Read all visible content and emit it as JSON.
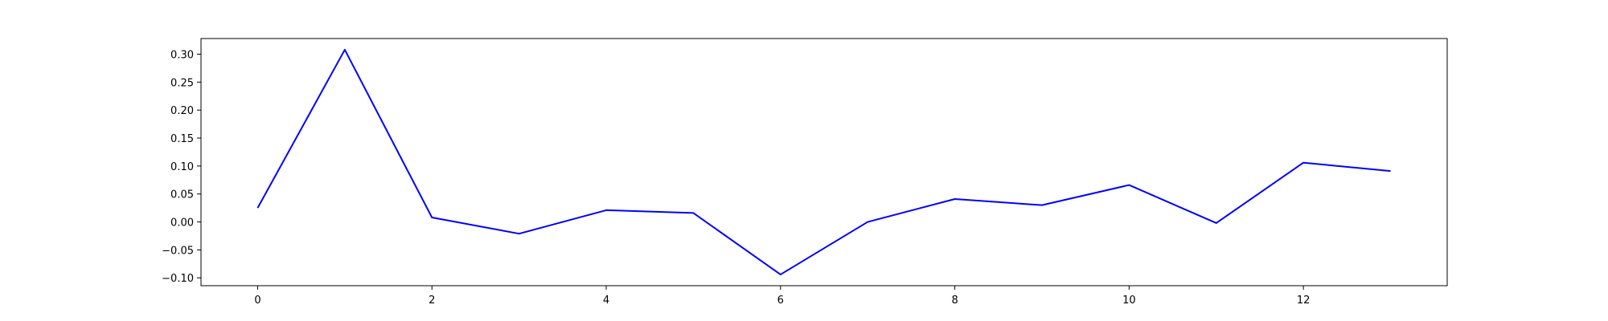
{
  "chart_data": {
    "type": "line",
    "title": "",
    "xlabel": "",
    "ylabel": "",
    "x": [
      0,
      1,
      2,
      3,
      4,
      5,
      6,
      7,
      8,
      9,
      10,
      11,
      12,
      13
    ],
    "series": [
      {
        "color": "#0000ff",
        "values": [
          0.025,
          0.308,
          0.008,
          -0.021,
          0.021,
          0.016,
          -0.094,
          0.0,
          0.041,
          0.03,
          0.066,
          -0.002,
          0.106,
          0.091
        ]
      }
    ],
    "xlim": [
      -0.65,
      13.65
    ],
    "ylim": [
      -0.114,
      0.328
    ],
    "xticks": [
      0,
      2,
      4,
      6,
      8,
      10,
      12
    ],
    "xtick_labels": [
      "0",
      "2",
      "4",
      "6",
      "8",
      "10",
      "12"
    ],
    "yticks": [
      -0.1,
      -0.05,
      0.0,
      0.05,
      0.1,
      0.15,
      0.2,
      0.25,
      0.3
    ],
    "ytick_labels": [
      "−0.10",
      "−0.05",
      "0.00",
      "0.05",
      "0.10",
      "0.15",
      "0.20",
      "0.25",
      "0.30"
    ],
    "grid": false,
    "legend": "none"
  }
}
